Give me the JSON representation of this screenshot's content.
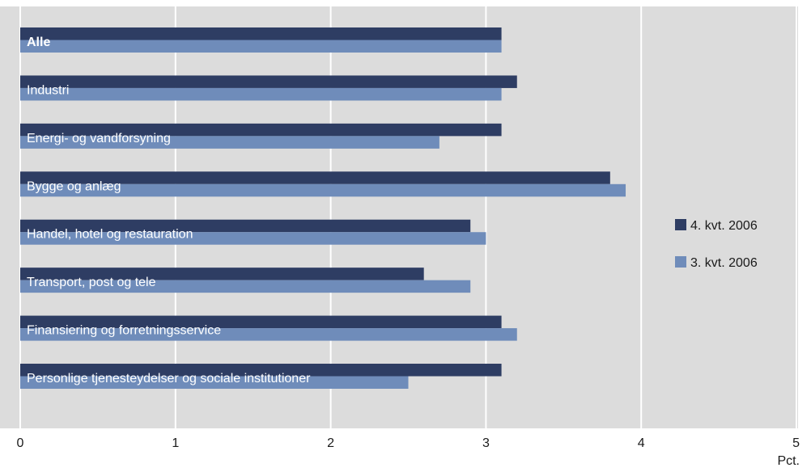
{
  "chart_data": {
    "type": "bar",
    "orientation": "horizontal",
    "categories": [
      "Alle",
      "Industri",
      "Energi- og vandforsyning",
      "Bygge og anlæg",
      "Handel, hotel og restauration",
      "Transport, post og tele",
      "Finansiering og forretningsservice",
      "Personlige tjenesteydelser og sociale institutioner"
    ],
    "series": [
      {
        "name": "4. kvt. 2006",
        "color": "#2e3d63",
        "values": [
          3.1,
          3.2,
          3.1,
          3.8,
          2.9,
          2.6,
          3.1,
          3.1
        ]
      },
      {
        "name": "3. kvt. 2006",
        "color": "#6f8cba",
        "values": [
          3.1,
          3.1,
          2.7,
          3.9,
          3.0,
          2.9,
          3.2,
          2.5
        ]
      }
    ],
    "xlim": [
      0,
      5
    ],
    "xticks": [
      "0",
      "1",
      "2",
      "3",
      "4",
      "5"
    ],
    "xlabel": "Pct.",
    "grid": true,
    "legend_position": "right",
    "colors": {
      "plot_background": "#dcdcdc",
      "grid": "#ffffff"
    }
  }
}
